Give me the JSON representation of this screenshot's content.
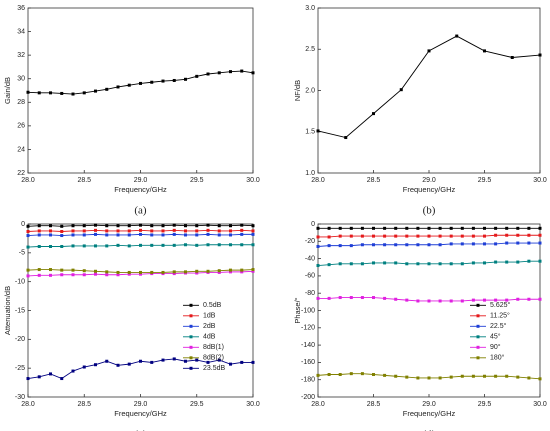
{
  "chart_data": [
    {
      "type": "line",
      "label": "(a)",
      "xlabel": "Frequency/GHz",
      "ylabel": "Gain/dB",
      "color": "#000000",
      "x": [
        28,
        28.1,
        28.2,
        28.3,
        28.4,
        28.5,
        28.6,
        28.7,
        28.8,
        28.9,
        29,
        29.1,
        29.2,
        29.3,
        29.4,
        29.5,
        29.6,
        29.7,
        29.8,
        29.9,
        30
      ],
      "values": [
        28.85,
        28.8,
        28.8,
        28.75,
        28.7,
        28.8,
        28.95,
        29.1,
        29.3,
        29.45,
        29.6,
        29.7,
        29.8,
        29.85,
        29.95,
        30.2,
        30.4,
        30.5,
        30.6,
        30.65,
        30.5
      ],
      "xlim": [
        28,
        30
      ],
      "ylim": [
        22,
        36
      ],
      "xticks": [
        {
          "value": 28,
          "label": "28.0"
        },
        28.5,
        {
          "value": 29,
          "label": "29.0"
        },
        29.5,
        {
          "value": 30,
          "label": "30.0"
        }
      ],
      "yticks": [
        22,
        24,
        26,
        28,
        30,
        32,
        34,
        36
      ]
    },
    {
      "type": "line",
      "label": "(b)",
      "xlabel": "Frequency/GHz",
      "ylabel": "NF/dB",
      "color": "#000000",
      "x": [
        28,
        28.25,
        28.5,
        28.75,
        29,
        29.25,
        29.5,
        29.75,
        30
      ],
      "values": [
        1.51,
        1.43,
        1.72,
        2.01,
        2.48,
        2.66,
        2.48,
        2.4,
        2.43
      ],
      "xlim": [
        28,
        30
      ],
      "ylim": [
        1,
        3
      ],
      "xticks": [
        {
          "value": 28,
          "label": "28.0"
        },
        28.5,
        {
          "value": 29,
          "label": "29.0"
        },
        29.5,
        {
          "value": 30,
          "label": "30.0"
        }
      ],
      "yticks": [
        {
          "value": 1,
          "label": "1.0"
        },
        1.5,
        {
          "value": 2,
          "label": "2.0"
        },
        2.5,
        {
          "value": 3,
          "label": "3.0"
        }
      ]
    },
    {
      "type": "line",
      "label": "(c)",
      "xlabel": "Frequency/GHz",
      "ylabel": "Attenuation/dB",
      "x": [
        28,
        28.1,
        28.2,
        28.3,
        28.4,
        28.5,
        28.6,
        28.7,
        28.8,
        28.9,
        29,
        29.1,
        29.2,
        29.3,
        29.4,
        29.5,
        29.6,
        29.7,
        29.8,
        29.9,
        30
      ],
      "series": [
        {
          "name": "0.5dB",
          "color": "#000000",
          "values": [
            -0.4,
            -0.3,
            -0.3,
            -0.4,
            -0.3,
            -0.3,
            -0.2,
            -0.3,
            -0.3,
            -0.3,
            -0.2,
            -0.3,
            -0.3,
            -0.2,
            -0.3,
            -0.3,
            -0.2,
            -0.3,
            -0.3,
            -0.2,
            -0.3
          ]
        },
        {
          "name": "1dB",
          "color": "#e41a1c",
          "values": [
            -1.3,
            -1.2,
            -1.2,
            -1.3,
            -1.2,
            -1.2,
            -1.1,
            -1.2,
            -1.2,
            -1.2,
            -1.1,
            -1.2,
            -1.2,
            -1.1,
            -1.2,
            -1.2,
            -1.1,
            -1.2,
            -1.2,
            -1.1,
            -1.2
          ]
        },
        {
          "name": "2dB",
          "color": "#1f3fd6",
          "values": [
            -2.0,
            -1.9,
            -1.9,
            -2.0,
            -1.9,
            -1.9,
            -1.8,
            -1.9,
            -1.9,
            -1.9,
            -1.8,
            -1.9,
            -1.9,
            -1.8,
            -1.9,
            -1.9,
            -1.8,
            -1.9,
            -1.9,
            -1.8,
            -1.8
          ]
        },
        {
          "name": "4dB",
          "color": "#008080",
          "values": [
            -4.0,
            -3.9,
            -3.9,
            -3.9,
            -3.8,
            -3.8,
            -3.8,
            -3.8,
            -3.7,
            -3.8,
            -3.7,
            -3.7,
            -3.7,
            -3.7,
            -3.6,
            -3.7,
            -3.6,
            -3.6,
            -3.6,
            -3.6,
            -3.6
          ]
        },
        {
          "name": "8dB(1)",
          "color": "#e020e0",
          "values": [
            -9.0,
            -8.9,
            -8.9,
            -8.8,
            -8.8,
            -8.8,
            -8.7,
            -8.8,
            -8.8,
            -8.7,
            -8.7,
            -8.6,
            -8.6,
            -8.6,
            -8.5,
            -8.5,
            -8.4,
            -8.4,
            -8.3,
            -8.3,
            -8.2
          ]
        },
        {
          "name": "8dB(2)",
          "color": "#808000",
          "values": [
            -8.0,
            -7.9,
            -7.9,
            -8.0,
            -8.0,
            -8.1,
            -8.2,
            -8.3,
            -8.4,
            -8.4,
            -8.4,
            -8.4,
            -8.4,
            -8.3,
            -8.3,
            -8.2,
            -8.2,
            -8.1,
            -8.0,
            -8.0,
            -7.9
          ]
        },
        {
          "name": "23.5dB",
          "color": "#000080",
          "values": [
            -26.8,
            -26.5,
            -26,
            -26.8,
            -25.5,
            -24.8,
            -24.4,
            -23.8,
            -24.5,
            -24.3,
            -23.8,
            -24,
            -23.6,
            -23.4,
            -23.8,
            -23.6,
            -24,
            -23.6,
            -24.3,
            -24,
            -24
          ]
        }
      ],
      "xlim": [
        28,
        30
      ],
      "ylim": [
        -30,
        0
      ],
      "xticks": [
        {
          "value": 28,
          "label": "28.0"
        },
        28.5,
        {
          "value": 29,
          "label": "29.0"
        },
        29.5,
        {
          "value": 30,
          "label": "30.0"
        }
      ],
      "yticks": [
        -30,
        -25,
        -20,
        -15,
        -10,
        -5,
        0
      ]
    },
    {
      "type": "line",
      "label": "(d)",
      "xlabel": "Frequency/GHz",
      "ylabel": "Phase/°",
      "x": [
        28,
        28.1,
        28.2,
        28.3,
        28.4,
        28.5,
        28.6,
        28.7,
        28.8,
        28.9,
        29,
        29.1,
        29.2,
        29.3,
        29.4,
        29.5,
        29.6,
        29.7,
        29.8,
        29.9,
        30
      ],
      "series": [
        {
          "name": "5.625°",
          "color": "#000000",
          "values": [
            -5,
            -5,
            -5,
            -5,
            -5,
            -5,
            -5,
            -5,
            -5,
            -5,
            -5,
            -5,
            -5,
            -5,
            -5,
            -5,
            -5,
            -5,
            -5,
            -5,
            -5
          ]
        },
        {
          "name": "11.25°",
          "color": "#e41a1c",
          "values": [
            -15,
            -15,
            -14,
            -14,
            -14,
            -14,
            -14,
            -14,
            -14,
            -14,
            -14,
            -14,
            -14,
            -14,
            -14,
            -14,
            -13,
            -13,
            -13,
            -13,
            -13
          ]
        },
        {
          "name": "22.5°",
          "color": "#1f3fd6",
          "values": [
            -26,
            -25,
            -25,
            -25,
            -24,
            -24,
            -24,
            -24,
            -24,
            -24,
            -24,
            -24,
            -23,
            -23,
            -23,
            -23,
            -23,
            -22,
            -22,
            -22,
            -22
          ]
        },
        {
          "name": "45°",
          "color": "#008080",
          "values": [
            -48,
            -47,
            -46,
            -46,
            -46,
            -45,
            -45,
            -45,
            -46,
            -46,
            -46,
            -46,
            -46,
            -46,
            -45,
            -45,
            -44,
            -44,
            -44,
            -43,
            -43
          ]
        },
        {
          "name": "90°",
          "color": "#e020e0",
          "values": [
            -86,
            -86,
            -85,
            -85,
            -85,
            -85,
            -86,
            -87,
            -88,
            -89,
            -89,
            -89,
            -89,
            -89,
            -88,
            -88,
            -88,
            -88,
            -87,
            -87,
            -87
          ]
        },
        {
          "name": "180°",
          "color": "#808000",
          "values": [
            -175,
            -174,
            -174,
            -173,
            -173,
            -174,
            -175,
            -176,
            -177,
            -178,
            -178,
            -178,
            -177,
            -176,
            -176,
            -176,
            -176,
            -176,
            -177,
            -178,
            -179
          ]
        }
      ],
      "xlim": [
        28,
        30
      ],
      "ylim": [
        -200,
        0
      ],
      "xticks": [
        {
          "value": 28,
          "label": "28.0"
        },
        28.5,
        {
          "value": 29,
          "label": "29.0"
        },
        29.5,
        {
          "value": 30,
          "label": "30.0"
        }
      ],
      "yticks": [
        -200,
        -180,
        -160,
        -140,
        -120,
        -100,
        -80,
        -60,
        -40,
        -20,
        0
      ]
    }
  ]
}
